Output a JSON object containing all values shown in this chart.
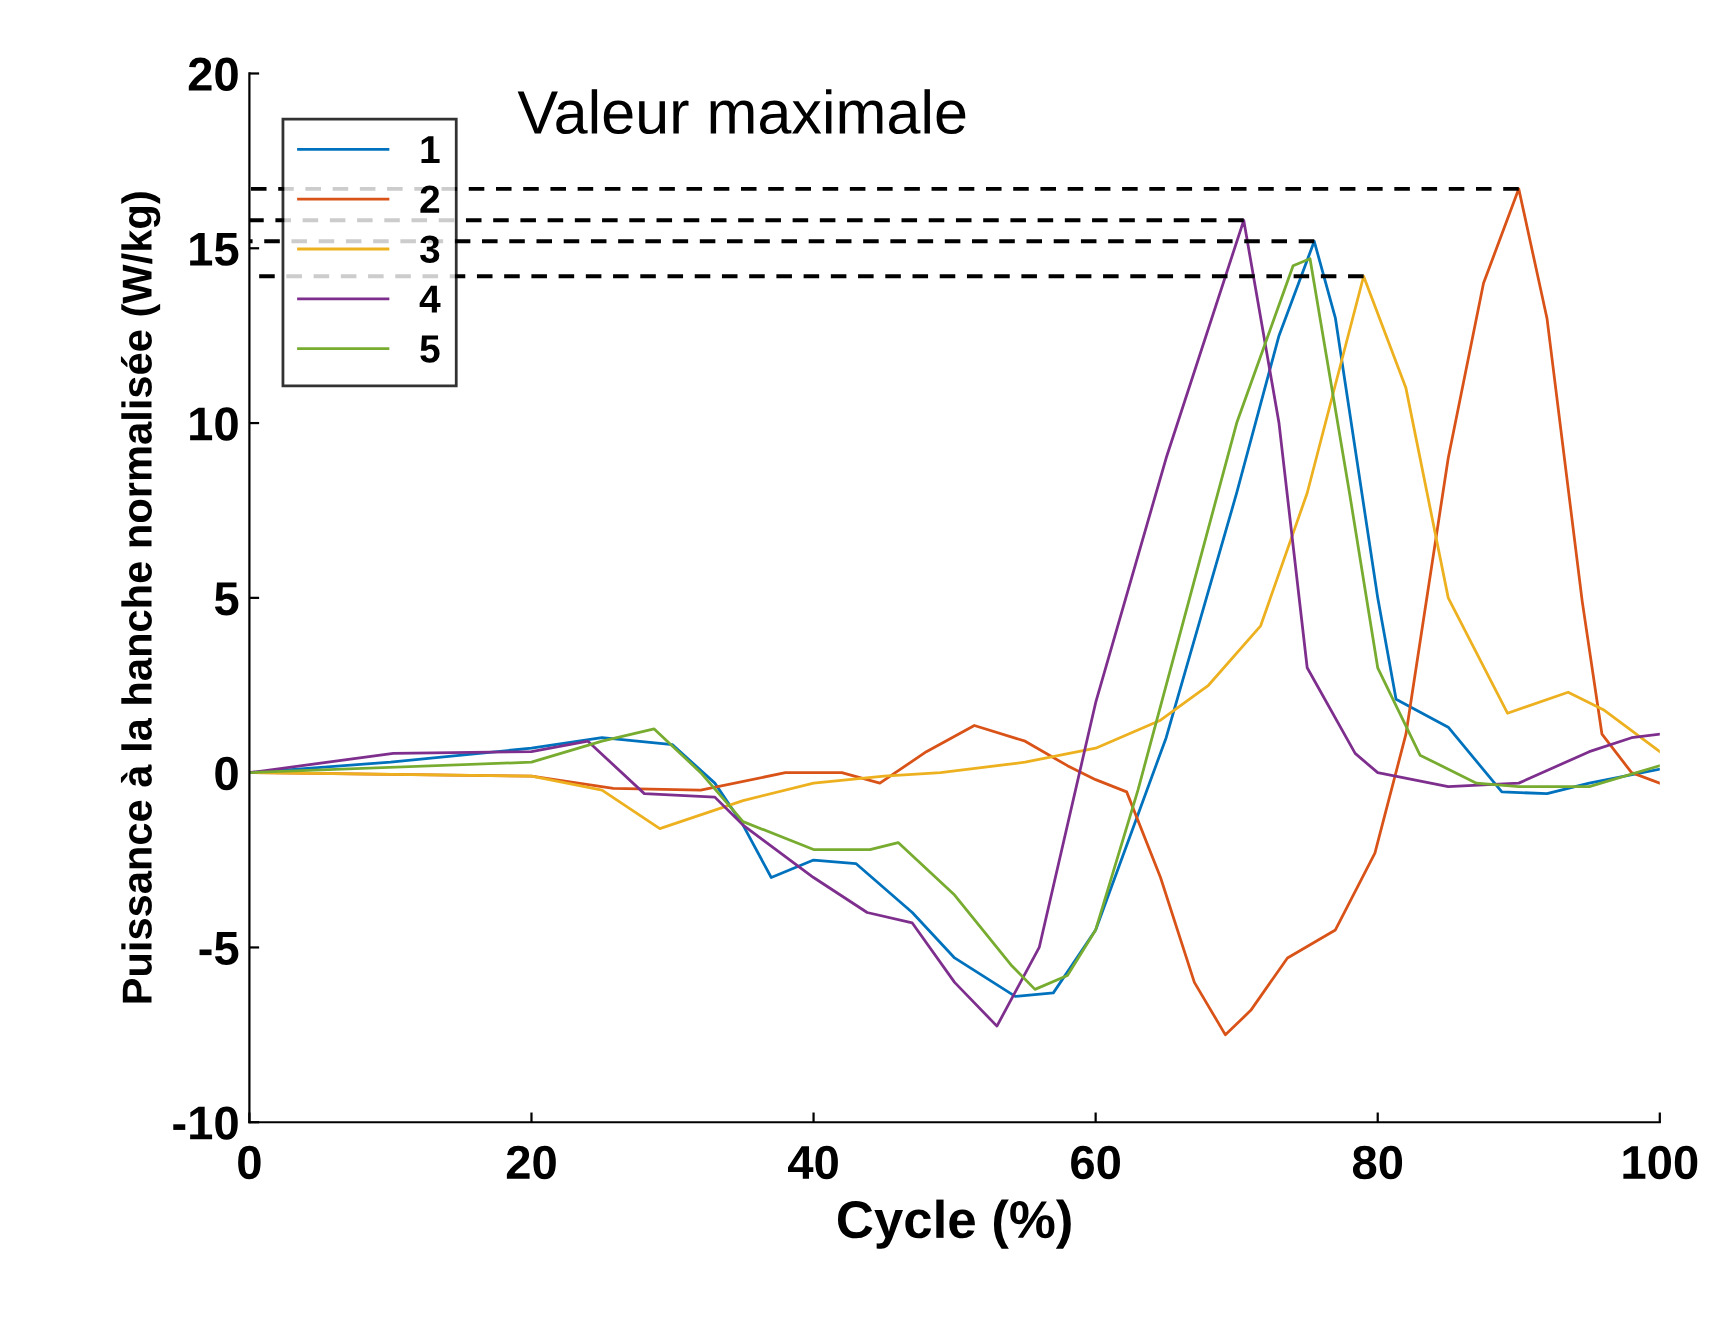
{
  "chart_data": {
    "type": "line",
    "xlabel": "Cycle (%)",
    "ylabel": "Puissance à la hanche normalisée (W/kg)",
    "annotations": [
      "Valeur maximale"
    ],
    "xlim": [
      0,
      100
    ],
    "ylim": [
      -10,
      20
    ],
    "xticks": [
      0,
      20,
      40,
      60,
      80,
      100
    ],
    "yticks": [
      -10,
      -5,
      0,
      5,
      10,
      15,
      20
    ],
    "grid": false,
    "legend": "top left",
    "line_style": "solid",
    "series": [
      {
        "name": "1",
        "color": "#0072bd",
        "x": [
          0,
          10,
          20,
          25,
          30,
          33,
          35,
          37,
          40,
          43,
          47,
          50,
          54.3,
          57,
          60,
          65,
          70,
          73,
          75.5,
          77,
          80,
          81.3,
          85,
          88.8,
          92,
          95,
          100
        ],
        "values": [
          0,
          0.3,
          0.7,
          1,
          0.8,
          -0.3,
          -1.5,
          -3,
          -2.5,
          -2.6,
          -4,
          -5.3,
          -6.4,
          -6.3,
          -4.5,
          1,
          8,
          12.5,
          15.2,
          13,
          5,
          2.1,
          1.3,
          -0.55,
          -0.6,
          -0.3,
          0.1
        ]
      },
      {
        "name": "2",
        "color": "#d95319",
        "x": [
          0,
          20,
          25.8,
          32,
          38,
          42,
          44.7,
          48,
          51.4,
          55,
          58,
          60,
          62.2,
          64.6,
          67,
          69.2,
          71,
          73.6,
          77,
          79.8,
          82,
          85,
          87.5,
          90,
          92,
          94.5,
          95.9,
          98,
          100
        ],
        "values": [
          0,
          -0.1,
          -0.45,
          -0.5,
          0,
          0,
          -0.3,
          0.6,
          1.35,
          0.9,
          0.2,
          -0.2,
          -0.55,
          -3,
          -6,
          -7.5,
          -6.8,
          -5.3,
          -4.5,
          -2.3,
          1.1,
          9,
          14,
          16.7,
          13,
          4.9,
          1.1,
          0,
          -0.3
        ]
      },
      {
        "name": "3",
        "color": "#edb120",
        "x": [
          0,
          20,
          25,
          29.1,
          35,
          40,
          45,
          49,
          55,
          60,
          64.6,
          68,
          71.7,
          75,
          79,
          82,
          85,
          89.2,
          93.5,
          96,
          100
        ],
        "values": [
          0,
          -0.1,
          -0.5,
          -1.6,
          -0.8,
          -0.3,
          -0.1,
          0,
          0.3,
          0.7,
          1.5,
          2.5,
          4.2,
          8,
          14.2,
          11,
          5,
          1.7,
          2.3,
          1.8,
          0.6
        ]
      },
      {
        "name": "4",
        "color": "#7e2f8e",
        "x": [
          0,
          10.2,
          20,
          24,
          28,
          33,
          35,
          40,
          43.8,
          47,
          50,
          53,
          56,
          60,
          65,
          70.5,
          73,
          75,
          78.4,
          80,
          85,
          90,
          95,
          98,
          100
        ],
        "values": [
          0,
          0.55,
          0.6,
          0.9,
          -0.6,
          -0.7,
          -1.5,
          -3,
          -4,
          -4.3,
          -6,
          -7.25,
          -5,
          2,
          9,
          15.8,
          10,
          3,
          0.55,
          0,
          -0.4,
          -0.3,
          0.6,
          1,
          1.1
        ]
      },
      {
        "name": "5",
        "color": "#77ac30",
        "x": [
          0,
          20,
          25,
          28.7,
          32,
          35,
          40,
          44,
          46,
          50,
          54,
          55.7,
          58,
          60,
          63,
          66,
          70,
          74,
          75.2,
          78,
          80,
          83,
          87,
          90,
          95,
          100
        ],
        "values": [
          0,
          0.3,
          0.9,
          1.25,
          0,
          -1.4,
          -2.2,
          -2.2,
          -2,
          -3.5,
          -5.5,
          -6.2,
          -5.8,
          -4.5,
          -0.5,
          4,
          10,
          14.5,
          14.7,
          8,
          3,
          0.5,
          -0.3,
          -0.4,
          -0.4,
          0.2
        ]
      },
      {
        "color": "#000000",
        "line_style": "dashed",
        "x": [
          0,
          90
        ],
        "values": [
          16.7,
          16.7
        ]
      },
      {
        "color": "#000000",
        "line_style": "dashed",
        "x": [
          0,
          70.5
        ],
        "values": [
          15.8,
          15.8
        ]
      },
      {
        "color": "#000000",
        "line_style": "dashed",
        "x": [
          0,
          75.5
        ],
        "values": [
          15.2,
          15.2
        ]
      },
      {
        "color": "#000000",
        "line_style": "dashed",
        "x": [
          0,
          79
        ],
        "values": [
          14.2,
          14.2
        ]
      }
    ]
  }
}
